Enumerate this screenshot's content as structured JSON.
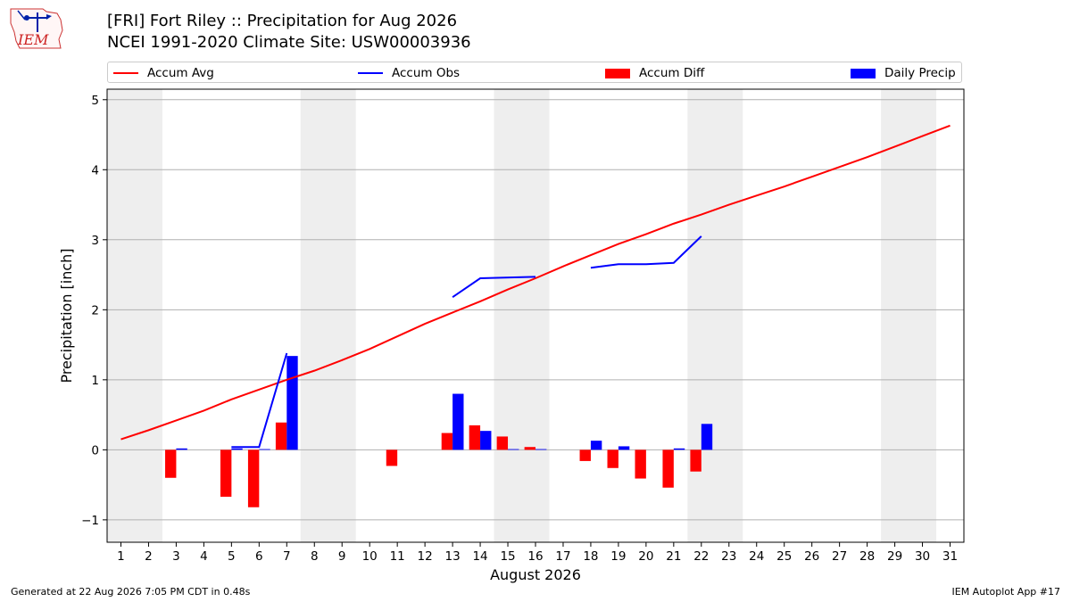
{
  "header": {
    "title_line1": "[FRI] Fort Riley :: Precipitation for Aug 2026",
    "title_line2": "NCEI 1991-2020 Climate Site: USW00003936",
    "logo_text": "IEM"
  },
  "footer": {
    "left": "Generated at 22 Aug 2026 7:05 PM CDT in 0.48s",
    "right": "IEM Autoplot App #17"
  },
  "colors": {
    "accum_avg": "#ff0000",
    "accum_obs": "#0000ff",
    "accum_diff": "#ff0000",
    "daily_precip": "#0000ff",
    "weekend_shade": "#eeeeee",
    "grid": "#b0b0b0"
  },
  "chart_data": {
    "type": "bar",
    "xlabel": "August 2026",
    "ylabel": "Precipitation [inch]",
    "xlim": [
      0.5,
      31.5
    ],
    "ylim": [
      -1.32,
      5.15
    ],
    "x_ticks": [
      1,
      2,
      3,
      4,
      5,
      6,
      7,
      8,
      9,
      10,
      11,
      12,
      13,
      14,
      15,
      16,
      17,
      18,
      19,
      20,
      21,
      22,
      23,
      24,
      25,
      26,
      27,
      28,
      29,
      30,
      31
    ],
    "y_ticks": [
      -1,
      0,
      1,
      2,
      3,
      4,
      5
    ],
    "y_tick_labels": [
      "−1",
      "0",
      "1",
      "2",
      "3",
      "4",
      "5"
    ],
    "grid": "horizontal",
    "legend_position": "top",
    "weekend_shading": [
      [
        0.5,
        2.5
      ],
      [
        7.5,
        9.5
      ],
      [
        14.5,
        16.5
      ],
      [
        21.5,
        23.5
      ],
      [
        28.5,
        30.5
      ]
    ],
    "series": [
      {
        "name": "Accum Avg",
        "type": "line",
        "x": [
          1,
          2,
          3,
          4,
          5,
          6,
          7,
          8,
          9,
          10,
          11,
          12,
          13,
          14,
          15,
          16,
          17,
          18,
          19,
          20,
          21,
          22,
          23,
          24,
          25,
          26,
          27,
          28,
          29,
          30,
          31
        ],
        "values": [
          0.15,
          0.28,
          0.42,
          0.56,
          0.72,
          0.86,
          1.0,
          1.13,
          1.28,
          1.44,
          1.62,
          1.8,
          1.96,
          2.12,
          2.29,
          2.45,
          2.62,
          2.78,
          2.94,
          3.08,
          3.23,
          3.36,
          3.5,
          3.63,
          3.76,
          3.9,
          4.04,
          4.18,
          4.33,
          4.48,
          4.63
        ]
      },
      {
        "name": "Accum Obs",
        "type": "line",
        "segments": [
          {
            "x": [
              5,
              6,
              7
            ],
            "values": [
              0.04,
              0.04,
              1.38
            ]
          },
          {
            "x": [
              13,
              14,
              16
            ],
            "values": [
              2.18,
              2.45,
              2.47
            ]
          },
          {
            "x": [
              18,
              19,
              20,
              21,
              22
            ],
            "values": [
              2.6,
              2.65,
              2.65,
              2.67,
              3.05
            ]
          }
        ]
      },
      {
        "name": "Accum Diff",
        "type": "bar",
        "x": [
          3,
          5,
          6,
          7,
          11,
          13,
          14,
          15,
          16,
          18,
          19,
          20,
          21,
          22
        ],
        "values": [
          -0.4,
          -0.67,
          -0.82,
          0.39,
          -0.23,
          0.24,
          0.35,
          0.19,
          0.04,
          -0.16,
          -0.26,
          -0.41,
          -0.54,
          -0.31
        ]
      },
      {
        "name": "Daily Precip",
        "type": "bar",
        "x": [
          3,
          5,
          6,
          7,
          13,
          14,
          15,
          16,
          18,
          19,
          21,
          22
        ],
        "values": [
          0.02,
          0.02,
          0.01,
          1.34,
          0.8,
          0.27,
          0.01,
          0.01,
          0.13,
          0.05,
          0.02,
          0.37
        ]
      }
    ]
  }
}
